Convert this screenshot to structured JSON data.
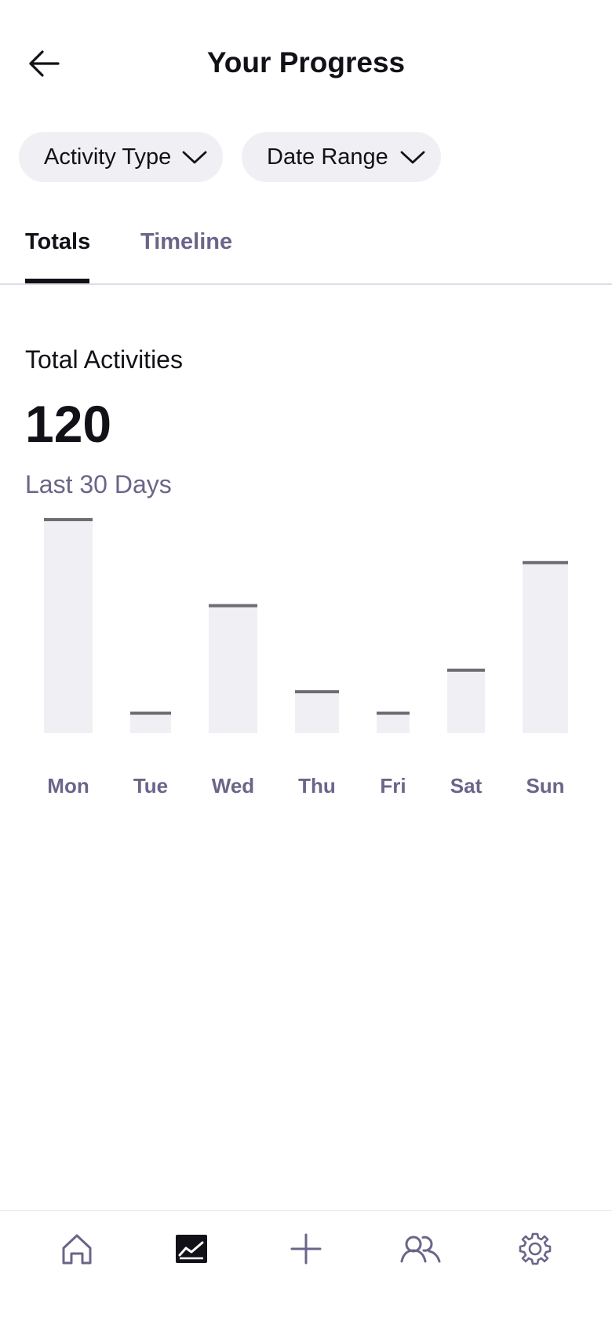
{
  "header": {
    "title": "Your Progress",
    "back_icon": "arrow-left-icon"
  },
  "filters": [
    {
      "label": "Activity Type",
      "icon": "chevron-down-icon"
    },
    {
      "label": "Date Range",
      "icon": "chevron-down-icon"
    }
  ],
  "tabs": [
    {
      "label": "Totals",
      "active": true
    },
    {
      "label": "Timeline",
      "active": false
    }
  ],
  "stats": {
    "label": "Total Activities",
    "value": "120",
    "period": "Last 30 Days"
  },
  "chart_data": {
    "type": "bar",
    "categories": [
      "Mon",
      "Tue",
      "Wed",
      "Thu",
      "Fri",
      "Sat",
      "Sun"
    ],
    "values": [
      100,
      10,
      60,
      20,
      10,
      30,
      80
    ],
    "ylim": [
      0,
      100
    ],
    "grid": false,
    "bar_fill": "#f0f0f4",
    "bar_cap": "#6e6d73",
    "label_color": "#6a6589"
  },
  "bottom_nav": [
    {
      "icon": "home-icon",
      "active": false
    },
    {
      "icon": "chart-icon",
      "active": true
    },
    {
      "icon": "plus-icon",
      "active": false
    },
    {
      "icon": "users-icon",
      "active": false
    },
    {
      "icon": "gear-icon",
      "active": false
    }
  ],
  "colors": {
    "text_primary": "#121117",
    "text_secondary": "#6a6589",
    "chip_bg": "#f0f0f4",
    "nav_icon": "#6a6589"
  }
}
